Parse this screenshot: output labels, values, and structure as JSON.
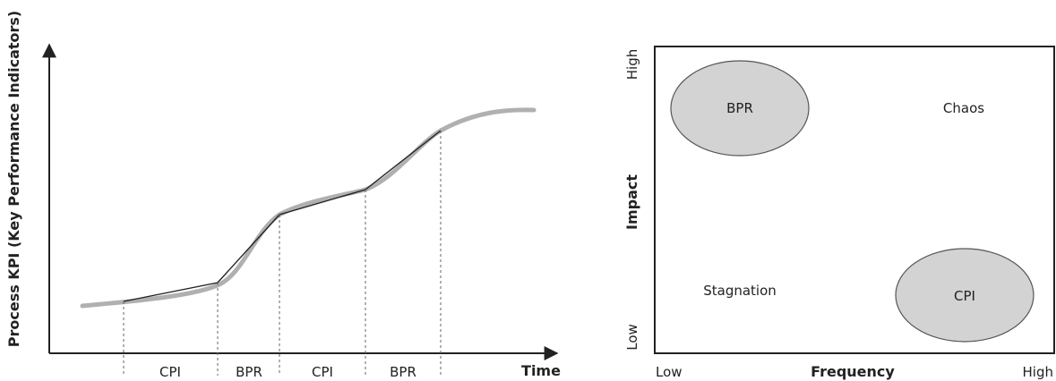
{
  "left_diagram": {
    "y_axis_label": "Process KPI (Key Performance Indicators)",
    "x_axis_label": "Time",
    "phases": [
      "CPI",
      "BPR",
      "CPI",
      "BPR"
    ]
  },
  "right_diagram": {
    "y_axis_label": "Impact",
    "x_axis_label": "Frequency",
    "y_low": "Low",
    "y_high": "High",
    "x_low": "Low",
    "x_high": "High",
    "quadrants": {
      "top_left": "BPR",
      "top_right": "Chaos",
      "bottom_left": "Stagnation",
      "bottom_right": "CPI"
    }
  },
  "colors": {
    "curve": "#b0b0b0",
    "line": "#222222",
    "ellipse_fill": "#d3d3d3",
    "ellipse_stroke": "#555555"
  }
}
